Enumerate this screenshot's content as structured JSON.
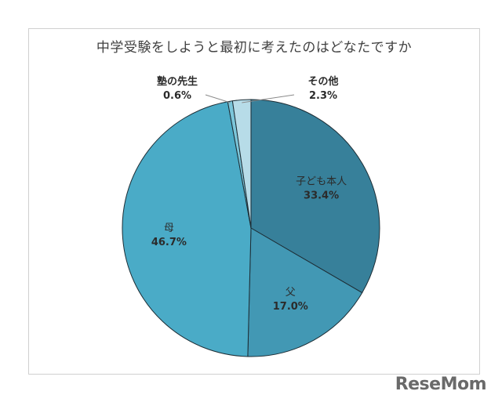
{
  "chart_data": {
    "type": "pie",
    "title": "中学受験をしようと最初に考えたのはどなたですか",
    "slices": [
      {
        "label": "子ども本人",
        "value": 33.4,
        "display": "33.4%",
        "color": "#37809a"
      },
      {
        "label": "父",
        "value": 17.0,
        "display": "17.0%",
        "color": "#4298b4"
      },
      {
        "label": "母",
        "value": 46.7,
        "display": "46.7%",
        "color": "#4aabc7"
      },
      {
        "label": "塾の先生",
        "value": 0.6,
        "display": "0.6%",
        "color": "#7cc6da"
      },
      {
        "label": "その他",
        "value": 2.3,
        "display": "2.3%",
        "color": "#b7dce8"
      }
    ]
  },
  "logo": {
    "text": "ReseMom"
  }
}
